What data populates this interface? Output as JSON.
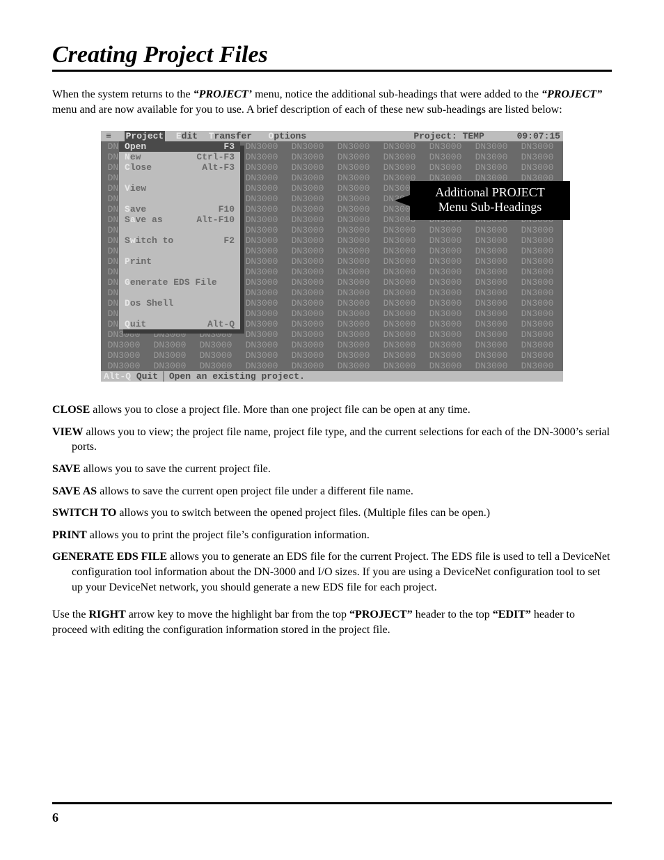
{
  "page": {
    "title": "Creating Project Files",
    "number": "6"
  },
  "intro": {
    "pre": "When the system returns to the ",
    "menu1": "“PROJECT’",
    "mid": " menu, notice the additional sub-headings that were added to the ",
    "menu2": "“PROJECT”",
    "post": " menu and are now available for you to use.  A brief description of each of these new sub-headings are listed below:"
  },
  "dos": {
    "bg_color": "#6a6a6a",
    "fg_dim": "#9a9a9a",
    "bar_bg": "#bdbdbd",
    "bar_fg": "#4a4a4a",
    "hot_fg": "#e8e8e8",
    "sel_bg": "#4a4a4a",
    "sel_fg": "#d8d8d8",
    "menubar": {
      "items": [
        "Project",
        "Edit",
        "Transfer",
        "Options"
      ],
      "project_label": "Project:",
      "project_name": "TEMP",
      "time": "09:07:15"
    },
    "grid_token": "DN3000",
    "grid_rows": 22,
    "grid_cols": 10,
    "dropdown": [
      {
        "label": "Open",
        "shortcut": "F3",
        "hot": "O",
        "sel": true
      },
      {
        "label": "New",
        "shortcut": "Ctrl-F3",
        "hot": "N"
      },
      {
        "label": "Close",
        "shortcut": "Alt-F3",
        "hot": "C"
      },
      {
        "sep": true
      },
      {
        "label": "View",
        "hot": "V"
      },
      {
        "sep": true
      },
      {
        "label": "Save",
        "shortcut": "F10",
        "hot": "S"
      },
      {
        "label": "Save as",
        "shortcut": "Alt-F10",
        "hot": "a"
      },
      {
        "sep": true
      },
      {
        "label": "Switch to",
        "shortcut": "F2",
        "hot": "w"
      },
      {
        "sep": true
      },
      {
        "label": "Print",
        "hot": "P"
      },
      {
        "sep": true
      },
      {
        "label": "Generate EDS File",
        "hot": "G"
      },
      {
        "sep": true
      },
      {
        "label": "Dos Shell",
        "hot": "D"
      },
      {
        "sep": true
      },
      {
        "label": "Quit",
        "shortcut": "Alt-Q",
        "hot": "Q"
      }
    ],
    "statusbar": {
      "key": "Alt-Q",
      "keylabel": "Quit",
      "hint": "Open an existing project."
    },
    "callout": {
      "line1": "Additional PROJECT",
      "line2": "Menu Sub-Headings"
    }
  },
  "defs": [
    {
      "term": "CLOSE",
      "body": " allows you to close a project file.  More than one project file can be open at any time."
    },
    {
      "term": "VIEW",
      "body": " allows you to view;  the project file name,  project file type, and the current selections for each of the DN-3000’s serial ports.",
      "hang": true
    },
    {
      "term": "SAVE",
      "body": " allows you to save the current project file."
    },
    {
      "term": "SAVE AS",
      "body": " allows to save the current open project file under a different file name."
    },
    {
      "term": "SWITCH TO",
      "body": " allows you to switch between the opened project files.  (Multiple files can be open.)"
    },
    {
      "term": "PRINT",
      "body": " allows you to print the project file’s configuration information."
    },
    {
      "term": "GENERATE EDS FILE",
      "body": " allows you to generate an EDS file for the current Project.  The EDS file is used to tell a DeviceNet configuration tool information about the DN-3000 and I/O sizes.  If you are using a DeviceNet configuration tool to set up your DeviceNet network, you should generate a new EDS file for each project.",
      "hang": true
    }
  ],
  "closing": {
    "t1": "Use the ",
    "b1": "RIGHT",
    "t2": " arrow key to move the highlight bar from the top ",
    "b2": "“PROJECT”",
    "t3": " header to the top ",
    "b3": "“EDIT”",
    "t4": " header to proceed with editing the configuration information stored in the project file."
  }
}
